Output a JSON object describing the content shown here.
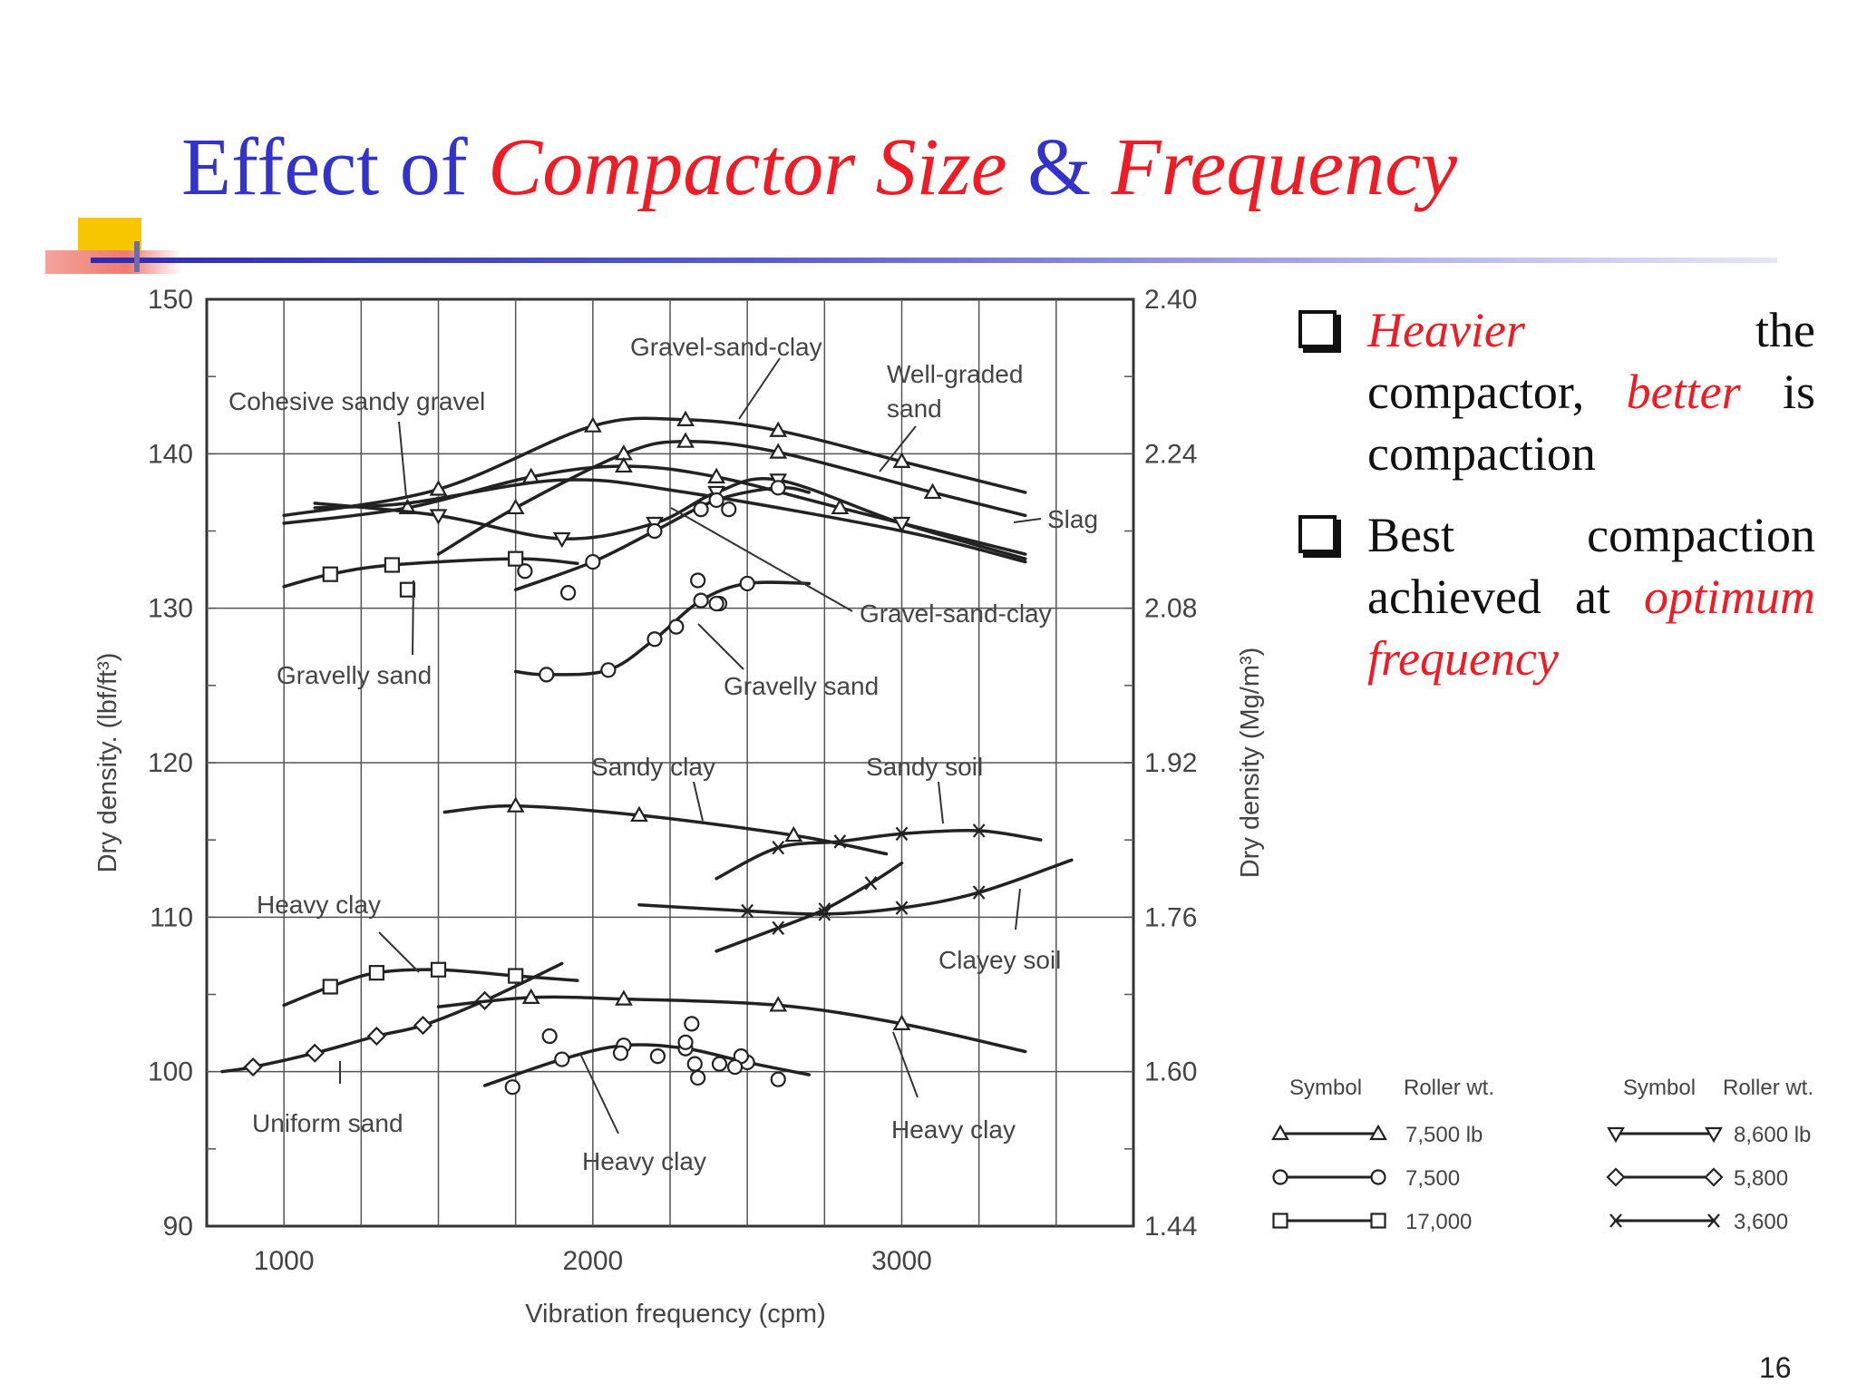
{
  "slide": {
    "title_parts": [
      {
        "text": "Effect of ",
        "style": "blue"
      },
      {
        "text": "Compactor Size",
        "style": "red"
      },
      {
        "text": " & ",
        "style": "blue"
      },
      {
        "text": "Frequency",
        "style": "red"
      }
    ],
    "bullets": [
      {
        "parts": [
          {
            "text": "Heavier",
            "style": "red"
          },
          {
            "text": " the compactor, ",
            "style": "plain"
          },
          {
            "text": "better",
            "style": "red"
          },
          {
            "text": " is compaction",
            "style": "plain"
          }
        ]
      },
      {
        "parts": [
          {
            "text": "Best compaction achieved at ",
            "style": "plain"
          },
          {
            "text": "optimum frequency",
            "style": "red"
          }
        ]
      }
    ],
    "page_number": "16",
    "colors": {
      "title_blue": "#3333cc",
      "accent_red": "#ee1c24"
    }
  },
  "chart_data": {
    "type": "line",
    "xlabel": "Vibration frequency (cpm)",
    "ylabel": "Dry density. (lbf/ft³)",
    "ylabel_right": "Dry density (Mg/m³)",
    "xlim": [
      750,
      3750
    ],
    "ylim": [
      90,
      150
    ],
    "x_ticks": [
      1000,
      2000,
      3000
    ],
    "y_ticks": [
      90,
      100,
      110,
      120,
      130,
      140,
      150
    ],
    "y_right_ticks": [
      {
        "value": 90,
        "label": "1.44"
      },
      {
        "value": 100,
        "label": "1.60"
      },
      {
        "value": 110,
        "label": "1.76"
      },
      {
        "value": 120,
        "label": "1.92"
      },
      {
        "value": 130,
        "label": "2.08"
      },
      {
        "value": 140,
        "label": "2.24"
      },
      {
        "value": 150,
        "label": "2.40"
      }
    ],
    "grid": true,
    "series": [
      {
        "marker": "triangle",
        "points": [
          [
            1000,
            136
          ],
          [
            1500,
            137.7
          ],
          [
            2000,
            141.8
          ],
          [
            2300,
            142.2
          ],
          [
            2600,
            141.5
          ],
          [
            3000,
            139.5
          ],
          [
            3400,
            137.5
          ]
        ]
      },
      {
        "marker": "triangle",
        "points": [
          [
            1500,
            133.5
          ],
          [
            1750,
            136.5
          ],
          [
            2100,
            140
          ],
          [
            2300,
            140.8
          ],
          [
            2600,
            140.1
          ],
          [
            3100,
            137.5
          ],
          [
            3400,
            136
          ]
        ]
      },
      {
        "marker": "triangle",
        "points": [
          [
            1000,
            135.5
          ],
          [
            1400,
            136.5
          ],
          [
            1800,
            138.5
          ],
          [
            2100,
            139.2
          ],
          [
            2400,
            138.5
          ],
          [
            2800,
            136.5
          ],
          [
            3400,
            133.5
          ]
        ]
      },
      {
        "marker": "triangle_down",
        "points": [
          [
            1100,
            136.8
          ],
          [
            1500,
            136
          ],
          [
            1900,
            134.5
          ],
          [
            2200,
            135.5
          ],
          [
            2400,
            137.5
          ],
          [
            2600,
            138.3
          ],
          [
            3000,
            135.5
          ],
          [
            3400,
            133.2
          ]
        ]
      },
      {
        "marker": "none",
        "points": [
          [
            1100,
            136.5
          ],
          [
            1400,
            136.8
          ],
          [
            1900,
            138.3
          ],
          [
            2300,
            137.5
          ],
          [
            3000,
            135
          ],
          [
            3400,
            133
          ]
        ]
      },
      {
        "marker": "circle",
        "points": [
          [
            1750,
            131.2
          ],
          [
            2000,
            133
          ],
          [
            2200,
            135
          ],
          [
            2400,
            137
          ],
          [
            2600,
            137.8
          ],
          [
            2700,
            137.5
          ]
        ]
      },
      {
        "marker": "circle",
        "points": [
          [
            1750,
            125.9
          ],
          [
            1850,
            125.7
          ],
          [
            2050,
            126
          ],
          [
            2200,
            128
          ],
          [
            2350,
            130.5
          ],
          [
            2500,
            131.6
          ],
          [
            2700,
            131.6
          ]
        ]
      },
      {
        "marker": "square",
        "points": [
          [
            1000,
            131.4
          ],
          [
            1150,
            132.2
          ],
          [
            1350,
            132.8
          ],
          [
            1750,
            133.2
          ],
          [
            1950,
            132.9
          ]
        ]
      },
      {
        "marker": "triangle",
        "points": [
          [
            1520,
            116.8
          ],
          [
            1750,
            117.2
          ],
          [
            2150,
            116.6
          ],
          [
            2650,
            115.3
          ],
          [
            2950,
            114.1
          ]
        ]
      },
      {
        "marker": "x",
        "points": [
          [
            2400,
            112.5
          ],
          [
            2600,
            114.5
          ],
          [
            2800,
            114.9
          ],
          [
            3000,
            115.4
          ],
          [
            3250,
            115.6
          ],
          [
            3450,
            115
          ]
        ]
      },
      {
        "marker": "x",
        "points": [
          [
            2150,
            110.8
          ],
          [
            2500,
            110.4
          ],
          [
            2750,
            110.2
          ],
          [
            3000,
            110.6
          ],
          [
            3250,
            111.6
          ],
          [
            3550,
            113.7
          ]
        ]
      },
      {
        "marker": "x",
        "points": [
          [
            2400,
            107.8
          ],
          [
            2600,
            109.3
          ],
          [
            2750,
            110.5
          ],
          [
            2900,
            112.2
          ],
          [
            3000,
            113.5
          ]
        ]
      },
      {
        "marker": "square",
        "points": [
          [
            1000,
            104.3
          ],
          [
            1150,
            105.5
          ],
          [
            1300,
            106.4
          ],
          [
            1500,
            106.6
          ],
          [
            1750,
            106.2
          ],
          [
            1950,
            105.9
          ]
        ]
      },
      {
        "marker": "diamond",
        "points": [
          [
            800,
            100
          ],
          [
            900,
            100.3
          ],
          [
            1100,
            101.2
          ],
          [
            1300,
            102.3
          ],
          [
            1450,
            103
          ],
          [
            1650,
            104.6
          ],
          [
            1900,
            107
          ]
        ]
      },
      {
        "marker": "triangle",
        "points": [
          [
            1500,
            104.2
          ],
          [
            1800,
            104.8
          ],
          [
            2100,
            104.7
          ],
          [
            2600,
            104.3
          ],
          [
            3000,
            103.1
          ],
          [
            3400,
            101.3
          ]
        ]
      },
      {
        "marker": "circle",
        "points": [
          [
            1650,
            99.1
          ],
          [
            1900,
            100.8
          ],
          [
            2100,
            101.7
          ],
          [
            2300,
            101.5
          ],
          [
            2500,
            100.6
          ],
          [
            2700,
            99.8
          ]
        ]
      }
    ],
    "scatter_points": [
      {
        "marker": "square",
        "points": [
          [
            1400,
            131.2
          ]
        ]
      },
      {
        "marker": "circle",
        "points": [
          [
            1780,
            132.4
          ],
          [
            1920,
            131
          ],
          [
            2350,
            136.4
          ],
          [
            2440,
            136.4
          ],
          [
            2340,
            131.8
          ],
          [
            2410,
            130.3
          ],
          [
            2270,
            128.8
          ],
          [
            2400,
            130.3
          ],
          [
            1860,
            102.3
          ],
          [
            2090,
            101.2
          ],
          [
            2210,
            101
          ],
          [
            2320,
            103.1
          ],
          [
            2300,
            101.9
          ],
          [
            2330,
            100.5
          ],
          [
            2410,
            100.5
          ],
          [
            2480,
            101
          ],
          [
            2340,
            99.6
          ],
          [
            2600,
            99.5
          ],
          [
            1740,
            99
          ],
          [
            2460,
            100.3
          ]
        ]
      }
    ],
    "annotations": [
      "Gravel-sand-clay",
      "Well-graded",
      "sand",
      "Cohesive sandy gravel",
      "Slag",
      "Gravel-sand-clay",
      "Gravelly sand",
      "Gravelly sand",
      "Sandy clay",
      "Sandy soil",
      "Heavy clay",
      "Clayey soil",
      "Uniform sand",
      "Heavy clay",
      "Heavy clay"
    ],
    "legend": {
      "header_symbol": "Symbol",
      "header_weight": "Roller wt.",
      "entries": [
        {
          "marker": "triangle",
          "label": "7,500 lb"
        },
        {
          "marker": "circle",
          "label": "7,500"
        },
        {
          "marker": "square",
          "label": "17,000"
        },
        {
          "marker": "triangle_down",
          "label": "8,600 lb"
        },
        {
          "marker": "diamond",
          "label": "5,800"
        },
        {
          "marker": "x",
          "label": "3,600"
        }
      ]
    }
  }
}
